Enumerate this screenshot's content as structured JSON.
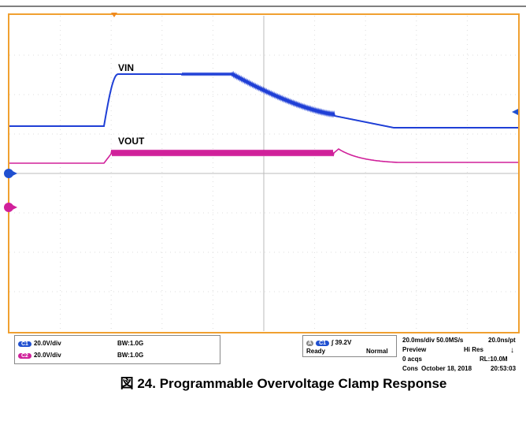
{
  "traces": {
    "vin_label": "VIN",
    "vout_label": "VOUT"
  },
  "status": {
    "channels": [
      {
        "badge": "C1",
        "scale": "20.0V/div",
        "bandwidth": "BW:1.0G"
      },
      {
        "badge": "C2",
        "scale": "20.0V/div",
        "bandwidth": "BW:1.0G"
      }
    ],
    "trigger": {
      "badge_a": "A",
      "source": "C1",
      "level": "39.2V",
      "state": "Ready",
      "mode": "Normal"
    },
    "acquisition": {
      "timebase": "20.0ms/div 50.0MS/s",
      "resolution": "20.0ns/pt",
      "preview": "Preview",
      "hires": "Hi Res",
      "acqs": "0 acqs",
      "record": "RL:10.0M",
      "cons": "Cons",
      "date": "October 18, 2018",
      "time": "20:53:03"
    }
  },
  "caption": "図 24. Programmable Overvoltage Clamp Response"
}
